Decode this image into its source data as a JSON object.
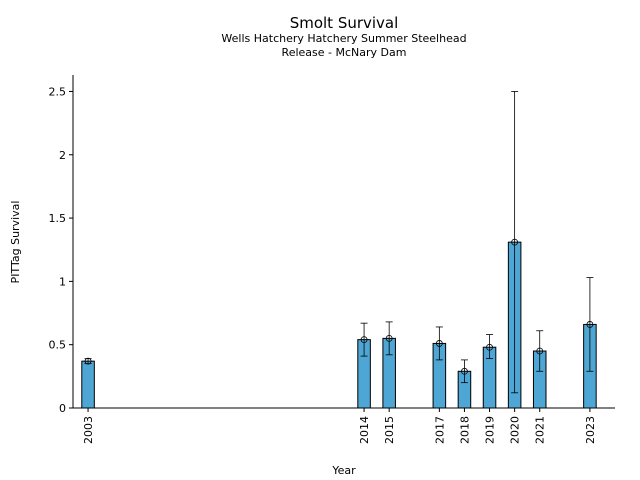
{
  "chart_data": {
    "type": "bar",
    "title": "Smolt Survival",
    "subtitle_lines": [
      "Wells Hatchery Hatchery Summer Steelhead",
      "Release - McNary Dam"
    ],
    "xlabel": "Year",
    "ylabel": "PITTag Survival",
    "x": [
      2003,
      2014,
      2015,
      2017,
      2018,
      2019,
      2020,
      2021,
      2023
    ],
    "values": [
      0.37,
      0.54,
      0.55,
      0.51,
      0.29,
      0.48,
      1.31,
      0.45,
      0.66
    ],
    "lower": [
      0.35,
      0.41,
      0.42,
      0.38,
      0.2,
      0.39,
      0.12,
      0.29,
      0.29
    ],
    "upper": [
      0.39,
      0.67,
      0.68,
      0.64,
      0.38,
      0.58,
      2.5,
      0.61,
      1.03
    ],
    "xlim": [
      2002.4,
      2024.0
    ],
    "ylim": [
      0,
      2.63
    ],
    "yticks": [
      0,
      0.5,
      1,
      1.5,
      2,
      2.5
    ],
    "ytick_labels": [
      "0",
      "0.5",
      "1",
      "1.5",
      "2",
      "2.5"
    ],
    "bar_color": "#4ea6d4",
    "grid": false,
    "legend": "none"
  }
}
